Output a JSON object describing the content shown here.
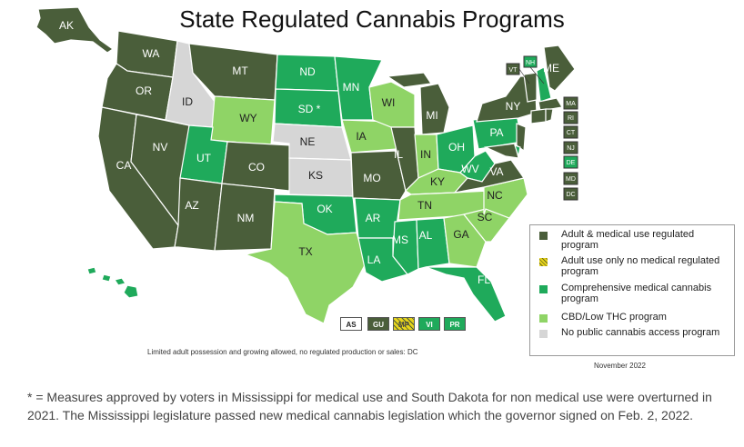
{
  "title": "State Regulated Cannabis Programs",
  "colors": {
    "adult": "#4a5e3a",
    "adult_only": "#e8d41a",
    "comprehensive": "#1faa5b",
    "cbd": "#8fd466",
    "none": "#d6d6d6"
  },
  "legend": [
    {
      "label": "Adult & medical use regulated program",
      "color": "#4a5e3a"
    },
    {
      "label": "Adult use only no medical regulated program",
      "color": "#e8d41a"
    },
    {
      "label": "Comprehensive medical cannabis program",
      "color": "#1faa5b"
    },
    {
      "label": "CBD/Low THC program",
      "color": "#8fd466"
    },
    {
      "label": "No public cannabis access program",
      "color": "#d6d6d6"
    }
  ],
  "states": {
    "AK": "AK",
    "WA": "WA",
    "OR": "OR",
    "CA": "CA",
    "NV": "NV",
    "ID": "ID",
    "MT": "MT",
    "WY": "WY",
    "UT": "UT",
    "AZ": "AZ",
    "CO": "CO",
    "NM": "NM",
    "ND": "ND",
    "SD": "SD *",
    "NE": "NE",
    "KS": "KS",
    "OK": "OK",
    "TX": "TX",
    "MN": "MN",
    "IA": "IA",
    "MO": "MO",
    "AR": "AR",
    "LA": "LA",
    "WI": "WI",
    "IL": "IL",
    "MS": "MS",
    "MI": "MI",
    "IN": "IN",
    "KY": "KY",
    "TN": "TN",
    "AL": "AL",
    "OH": "OH",
    "WV": "WV",
    "VA": "VA",
    "NC": "NC",
    "SC": "SC",
    "GA": "GA",
    "FL": "FL",
    "PA": "PA",
    "NY": "NY",
    "VT": "VT",
    "NH": "NH",
    "ME": "ME",
    "HI": "HI",
    "MA": "MA",
    "RI": "RI",
    "CT": "CT",
    "NJ": "NJ",
    "DE": "DE",
    "MD": "MD",
    "DC": "DC"
  },
  "territories": [
    "AS",
    "GU",
    "MP",
    "VI",
    "PR"
  ],
  "note": "Limited adult possession and growing allowed, no regulated production or sales: DC",
  "date": "November 2022",
  "footnote": "* = Measures approved by voters in Mississippi for medical use and South Dakota for non medical use were overturned in 2021. The Mississippi legislature passed new medical cannabis legislation which the governor signed on Feb. 2, 2022."
}
